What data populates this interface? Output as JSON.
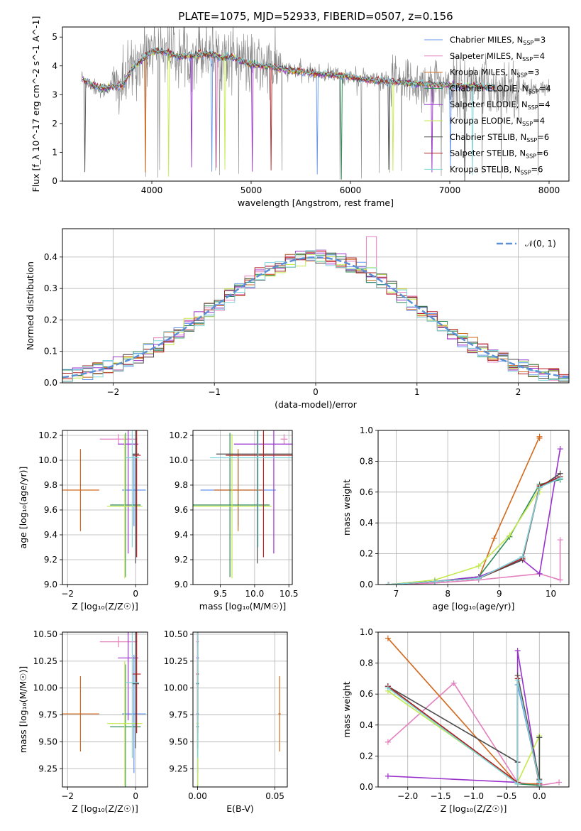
{
  "figure": {
    "title": "PLATE=1075, MJD=52933, FIBERID=0507, z=0.156"
  },
  "models": [
    {
      "name": "Chabrier MILES",
      "nssp": "3",
      "color": "#6495ed"
    },
    {
      "name": "Salpeter MILES",
      "nssp": "4",
      "color": "#e47fbf"
    },
    {
      "name": "Kroupa MILES",
      "nssp": "3",
      "color": "#d2691e"
    },
    {
      "name": "Chabrier ELODIE",
      "nssp": "4",
      "color": "#2e8b57"
    },
    {
      "name": "Salpeter ELODIE",
      "nssp": "4",
      "color": "#9932cc"
    },
    {
      "name": "Kroupa ELODIE",
      "nssp": "4",
      "color": "#c5ea4e"
    },
    {
      "name": "Chabrier STELIB",
      "nssp": "6",
      "color": "#4d4d4d"
    },
    {
      "name": "Salpeter STELIB",
      "nssp": "6",
      "color": "#b22222"
    },
    {
      "name": "Kroupa STELIB",
      "nssp": "6",
      "color": "#7fd4d9"
    }
  ],
  "chart_data": [
    {
      "id": "spectrum",
      "type": "line",
      "xlabel": "wavelength [Angstrom, rest frame]",
      "ylabel": "Flux [f_λ 10^-17 erg cm^-2 s^-1 A^-1]",
      "xlim": [
        3100,
        8200
      ],
      "ylim": [
        0,
        5.35
      ],
      "xticks": [
        4000,
        5000,
        6000,
        7000,
        8000
      ],
      "yticks": [
        0,
        1,
        2,
        3,
        4,
        5
      ],
      "data_color": "#808080",
      "data_x": [
        3300,
        3400,
        3500,
        3600,
        3700,
        3800,
        3900,
        4000,
        4100,
        4200,
        4300,
        4400,
        4500,
        4600,
        4700,
        4800,
        4900,
        5000,
        5100,
        5200,
        5300,
        5400,
        5500,
        5600,
        5700,
        5800,
        5900,
        6000,
        6100,
        6200,
        6300,
        6400,
        6500,
        6600,
        6700,
        6800,
        6900,
        7000,
        7100,
        7200,
        7300,
        7400,
        7500,
        7600,
        7700,
        7800,
        7900,
        8000
      ],
      "data_y": [
        3.6,
        3.3,
        3.15,
        3.3,
        3.25,
        3.9,
        4.3,
        4.7,
        4.65,
        4.5,
        4.3,
        4.4,
        4.55,
        4.5,
        4.35,
        4.4,
        4.2,
        4.05,
        4.0,
        3.9,
        3.9,
        3.85,
        3.8,
        3.75,
        3.7,
        3.75,
        3.65,
        3.6,
        3.55,
        3.5,
        3.45,
        3.5,
        3.4,
        3.45,
        3.4,
        3.35,
        3.35,
        3.3,
        3.3,
        3.35,
        3.3,
        3.3,
        3.25,
        3.3,
        3.2,
        3.25,
        3.15,
        3.2
      ],
      "model_y": [
        3.55,
        3.35,
        3.2,
        3.3,
        3.3,
        3.9,
        4.2,
        4.5,
        4.5,
        4.4,
        4.3,
        4.35,
        4.4,
        4.4,
        4.3,
        4.3,
        4.15,
        4.05,
        4.0,
        3.95,
        3.9,
        3.85,
        3.8,
        3.75,
        3.72,
        3.7,
        3.65,
        3.6,
        3.55,
        3.5,
        3.47,
        3.45,
        3.42,
        3.4,
        3.38,
        3.36,
        3.34,
        3.32,
        3.3,
        3.3,
        3.3,
        3.28,
        3.26,
        3.25,
        3.22,
        3.2,
        3.18,
        3.16
      ],
      "legend_position": "upper right"
    },
    {
      "id": "residuals",
      "type": "line",
      "xlabel": "(data-model)/error",
      "ylabel": "Normed distribution",
      "xlim": [
        -2.5,
        2.5
      ],
      "ylim": [
        0,
        0.49
      ],
      "xticks": [
        -2,
        -1,
        0,
        1,
        2
      ],
      "yticks": [
        0.0,
        0.1,
        0.2,
        0.3,
        0.4
      ],
      "bin_width": 0.1,
      "bin_start": -2.5,
      "gauss_label": "𝒩(0, 1)",
      "gauss_color": "#5b8fd6",
      "grid": true
    },
    {
      "id": "z-age",
      "type": "scatter",
      "xlabel": "Z [log10(Z/Z☉)]",
      "ylabel": "age [log10(age/yr)]",
      "xlim": [
        -2.15,
        0.35
      ],
      "ylim": [
        9.0,
        10.24
      ],
      "xticks": [
        -2,
        0
      ],
      "yticks": [
        9.0,
        9.2,
        9.4,
        9.6,
        9.8,
        10.0,
        10.2
      ],
      "grid": true
    },
    {
      "id": "mass-age",
      "type": "scatter",
      "xlabel": "mass [log10(M/M☉)]",
      "ylabel": "",
      "xlim": [
        9.1,
        10.55
      ],
      "ylim": [
        9.0,
        10.24
      ],
      "xticks": [
        9.5,
        10.0,
        10.5
      ],
      "yticks": [
        9.0,
        9.2,
        9.4,
        9.6,
        9.8,
        10.0,
        10.2
      ],
      "grid": true
    },
    {
      "id": "age-weight",
      "type": "line",
      "xlabel": "age [log10(age/yr)]",
      "ylabel": "mass weight",
      "xlim": [
        6.65,
        10.35
      ],
      "ylim": [
        0,
        1.0
      ],
      "xticks": [
        7,
        8,
        9,
        10
      ],
      "yticks": [
        0.0,
        0.2,
        0.4,
        0.6,
        0.8,
        1.0
      ],
      "grid": true
    },
    {
      "id": "z-mass",
      "type": "scatter",
      "xlabel": "Z [log10(Z/Z☉)]",
      "ylabel": "mass [log10(M/M☉)]",
      "xlim": [
        -2.15,
        0.35
      ],
      "ylim": [
        9.08,
        10.52
      ],
      "xticks": [
        -2,
        0
      ],
      "yticks": [
        9.25,
        9.5,
        9.75,
        10.0,
        10.25,
        10.5
      ],
      "grid": true
    },
    {
      "id": "ebv-mass",
      "type": "scatter",
      "xlabel": "E(B-V)",
      "ylabel": "",
      "xlim": [
        -0.003,
        0.058
      ],
      "ylim": [
        9.08,
        10.52
      ],
      "xticks": [
        0.0,
        0.05
      ],
      "yticks": [
        9.25,
        9.5,
        9.75,
        10.0,
        10.25,
        10.5
      ],
      "grid": true
    },
    {
      "id": "z-weight",
      "type": "line",
      "xlabel": "Z [log10(Z/Z☉)]",
      "ylabel": "mass weight",
      "xlim": [
        -2.45,
        0.45
      ],
      "ylim": [
        0,
        1.0
      ],
      "xticks": [
        -2.0,
        -1.5,
        -1.0,
        -0.5,
        0.0
      ],
      "yticks": [
        0.0,
        0.2,
        0.4,
        0.6,
        0.8,
        1.0
      ],
      "grid": true
    }
  ]
}
